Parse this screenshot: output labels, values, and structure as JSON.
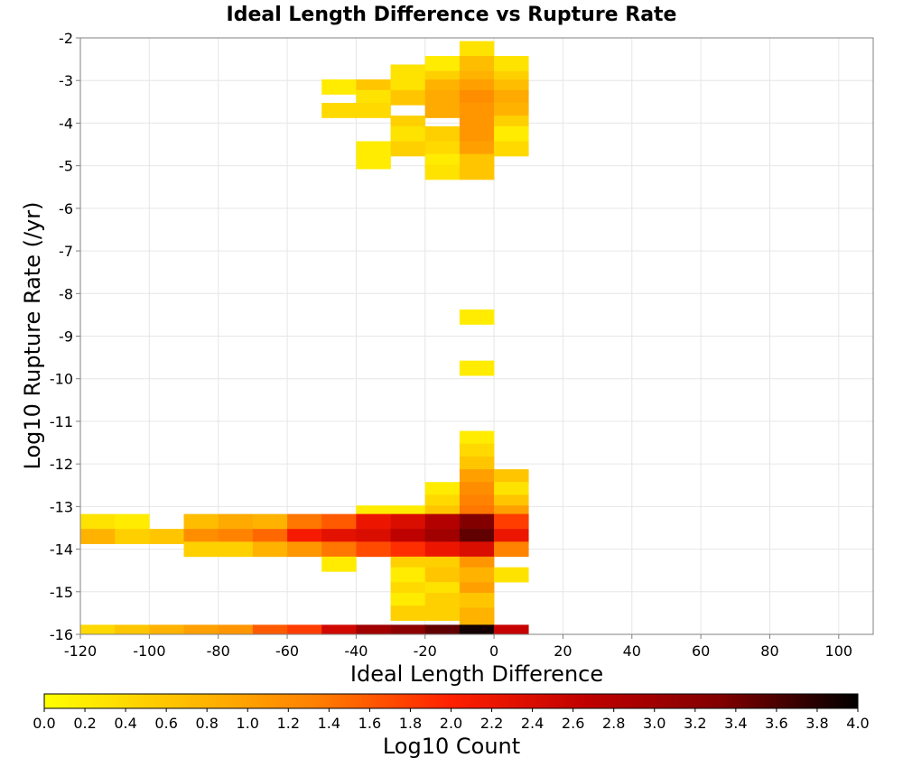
{
  "chart_data": {
    "type": "heatmap",
    "title": "Ideal Length Difference vs Rupture Rate",
    "xlabel": "Ideal Length Difference",
    "ylabel": "Log10 Rupture Rate (/yr)",
    "xlim": [
      -120,
      110
    ],
    "ylim": [
      -16,
      -2
    ],
    "xticks": [
      "-120",
      "-100",
      "-80",
      "-60",
      "-40",
      "-20",
      "0",
      "20",
      "40",
      "60",
      "80",
      "100"
    ],
    "yticks": [
      "-2",
      "-3",
      "-4",
      "-5",
      "-6",
      "-7",
      "-8",
      "-9",
      "-10",
      "-11",
      "-12",
      "-13",
      "-14",
      "-15",
      "-16"
    ],
    "grid": true,
    "bin_width_x": 10,
    "bin_height_y": 0.35,
    "colorbar": {
      "label": "Log10 Count",
      "min": 0,
      "max": 4,
      "ticks": [
        "0.0",
        "0.2",
        "0.4",
        "0.6",
        "0.8",
        "1.0",
        "1.2",
        "1.4",
        "1.6",
        "1.8",
        "2.0",
        "2.2",
        "2.4",
        "2.6",
        "2.8",
        "3.0",
        "3.2",
        "3.4",
        "3.6",
        "3.8",
        "4.0"
      ],
      "colors": [
        "#ffff00",
        "#ffc000",
        "#ff8000",
        "#ff2000",
        "#c00000",
        "#800000",
        "#000000"
      ]
    },
    "cells": [
      {
        "x": -5,
        "y": -2.25,
        "v": 0.3
      },
      {
        "x": -15,
        "y": -2.6,
        "v": 0.2
      },
      {
        "x": -5,
        "y": -2.6,
        "v": 0.7
      },
      {
        "x": 5,
        "y": -2.6,
        "v": 0.3
      },
      {
        "x": -25,
        "y": -2.8,
        "v": 0.3
      },
      {
        "x": -15,
        "y": -2.95,
        "v": 0.5
      },
      {
        "x": -5,
        "y": -2.95,
        "v": 0.8
      },
      {
        "x": 5,
        "y": -2.95,
        "v": 0.5
      },
      {
        "x": -45,
        "y": -3.15,
        "v": 0.2
      },
      {
        "x": -35,
        "y": -3.15,
        "v": 0.6
      },
      {
        "x": -25,
        "y": -3.15,
        "v": 0.3
      },
      {
        "x": -15,
        "y": -3.15,
        "v": 0.8
      },
      {
        "x": -5,
        "y": -3.15,
        "v": 1.0
      },
      {
        "x": 5,
        "y": -3.15,
        "v": 0.7
      },
      {
        "x": -35,
        "y": -3.4,
        "v": 0.3
      },
      {
        "x": -25,
        "y": -3.4,
        "v": 0.6
      },
      {
        "x": -15,
        "y": -3.4,
        "v": 0.9
      },
      {
        "x": -5,
        "y": -3.4,
        "v": 1.2
      },
      {
        "x": 5,
        "y": -3.4,
        "v": 0.9
      },
      {
        "x": -45,
        "y": -3.7,
        "v": 0.4
      },
      {
        "x": -35,
        "y": -3.7,
        "v": 0.4
      },
      {
        "x": -15,
        "y": -3.7,
        "v": 0.9
      },
      {
        "x": -5,
        "y": -3.7,
        "v": 1.1
      },
      {
        "x": 5,
        "y": -3.7,
        "v": 0.8
      },
      {
        "x": -25,
        "y": -4.0,
        "v": 0.5
      },
      {
        "x": -5,
        "y": -4.0,
        "v": 1.1
      },
      {
        "x": 5,
        "y": -4.0,
        "v": 0.5
      },
      {
        "x": -25,
        "y": -4.25,
        "v": 0.3
      },
      {
        "x": -15,
        "y": -4.25,
        "v": 0.5
      },
      {
        "x": -5,
        "y": -4.25,
        "v": 1.1
      },
      {
        "x": 5,
        "y": -4.25,
        "v": 0.2
      },
      {
        "x": -35,
        "y": -4.6,
        "v": 0.2
      },
      {
        "x": -25,
        "y": -4.6,
        "v": 0.5
      },
      {
        "x": -15,
        "y": -4.6,
        "v": 0.4
      },
      {
        "x": -5,
        "y": -4.6,
        "v": 1.0
      },
      {
        "x": 5,
        "y": -4.6,
        "v": 0.4
      },
      {
        "x": -35,
        "y": -4.9,
        "v": 0.2
      },
      {
        "x": -15,
        "y": -4.9,
        "v": 0.2
      },
      {
        "x": -5,
        "y": -4.9,
        "v": 0.6
      },
      {
        "x": -15,
        "y": -5.15,
        "v": 0.3
      },
      {
        "x": -5,
        "y": -5.15,
        "v": 0.6
      },
      {
        "x": -5,
        "y": -8.55,
        "v": 0.2
      },
      {
        "x": -5,
        "y": -9.75,
        "v": 0.2
      },
      {
        "x": -5,
        "y": -11.4,
        "v": 0.2
      },
      {
        "x": -5,
        "y": -11.7,
        "v": 0.4
      },
      {
        "x": -5,
        "y": -12.0,
        "v": 0.6
      },
      {
        "x": -5,
        "y": -12.3,
        "v": 1.0
      },
      {
        "x": 5,
        "y": -12.3,
        "v": 0.6
      },
      {
        "x": -15,
        "y": -12.6,
        "v": 0.2
      },
      {
        "x": -5,
        "y": -12.6,
        "v": 1.2
      },
      {
        "x": 5,
        "y": -12.6,
        "v": 0.3
      },
      {
        "x": -15,
        "y": -12.9,
        "v": 0.4
      },
      {
        "x": -5,
        "y": -12.9,
        "v": 1.3
      },
      {
        "x": 5,
        "y": -12.9,
        "v": 0.6
      },
      {
        "x": -35,
        "y": -13.15,
        "v": 0.2
      },
      {
        "x": -25,
        "y": -13.15,
        "v": 0.2
      },
      {
        "x": -15,
        "y": -13.15,
        "v": 0.6
      },
      {
        "x": -5,
        "y": -13.15,
        "v": 1.4
      },
      {
        "x": 5,
        "y": -13.15,
        "v": 1.0
      },
      {
        "x": -115,
        "y": -13.35,
        "v": 0.3
      },
      {
        "x": -105,
        "y": -13.35,
        "v": 0.2
      },
      {
        "x": -85,
        "y": -13.35,
        "v": 0.7
      },
      {
        "x": -75,
        "y": -13.35,
        "v": 0.9
      },
      {
        "x": -65,
        "y": -13.35,
        "v": 0.8
      },
      {
        "x": -55,
        "y": -13.35,
        "v": 1.4
      },
      {
        "x": -45,
        "y": -13.35,
        "v": 1.6
      },
      {
        "x": -35,
        "y": -13.35,
        "v": 2.2
      },
      {
        "x": -25,
        "y": -13.35,
        "v": 2.4
      },
      {
        "x": -15,
        "y": -13.35,
        "v": 2.8
      },
      {
        "x": -5,
        "y": -13.35,
        "v": 3.3
      },
      {
        "x": 5,
        "y": -13.35,
        "v": 1.8
      },
      {
        "x": -115,
        "y": -13.7,
        "v": 0.8
      },
      {
        "x": -105,
        "y": -13.7,
        "v": 0.5
      },
      {
        "x": -95,
        "y": -13.7,
        "v": 0.6
      },
      {
        "x": -85,
        "y": -13.7,
        "v": 1.2
      },
      {
        "x": -75,
        "y": -13.7,
        "v": 1.3
      },
      {
        "x": -65,
        "y": -13.7,
        "v": 1.5
      },
      {
        "x": -55,
        "y": -13.7,
        "v": 2.1
      },
      {
        "x": -45,
        "y": -13.7,
        "v": 2.3
      },
      {
        "x": -35,
        "y": -13.7,
        "v": 2.4
      },
      {
        "x": -25,
        "y": -13.7,
        "v": 2.7
      },
      {
        "x": -15,
        "y": -13.7,
        "v": 3.0
      },
      {
        "x": -5,
        "y": -13.7,
        "v": 3.5
      },
      {
        "x": 5,
        "y": -13.7,
        "v": 2.2
      },
      {
        "x": -85,
        "y": -14.0,
        "v": 0.5
      },
      {
        "x": -75,
        "y": -14.0,
        "v": 0.5
      },
      {
        "x": -65,
        "y": -14.0,
        "v": 0.8
      },
      {
        "x": -55,
        "y": -14.0,
        "v": 1.1
      },
      {
        "x": -45,
        "y": -14.0,
        "v": 1.4
      },
      {
        "x": -35,
        "y": -14.0,
        "v": 1.7
      },
      {
        "x": -25,
        "y": -14.0,
        "v": 1.9
      },
      {
        "x": -15,
        "y": -14.0,
        "v": 2.2
      },
      {
        "x": -5,
        "y": -14.0,
        "v": 2.4
      },
      {
        "x": 5,
        "y": -14.0,
        "v": 1.3
      },
      {
        "x": -45,
        "y": -14.35,
        "v": 0.2
      },
      {
        "x": -25,
        "y": -14.35,
        "v": 0.5
      },
      {
        "x": -15,
        "y": -14.35,
        "v": 0.5
      },
      {
        "x": -5,
        "y": -14.35,
        "v": 1.1
      },
      {
        "x": -25,
        "y": -14.6,
        "v": 0.2
      },
      {
        "x": -15,
        "y": -14.6,
        "v": 0.6
      },
      {
        "x": -5,
        "y": -14.6,
        "v": 0.8
      },
      {
        "x": 5,
        "y": -14.6,
        "v": 0.3
      },
      {
        "x": -25,
        "y": -14.95,
        "v": 0.4
      },
      {
        "x": -15,
        "y": -14.95,
        "v": 0.3
      },
      {
        "x": -5,
        "y": -14.95,
        "v": 1.0
      },
      {
        "x": -25,
        "y": -15.2,
        "v": 0.2
      },
      {
        "x": -15,
        "y": -15.2,
        "v": 0.5
      },
      {
        "x": -5,
        "y": -15.2,
        "v": 0.6
      },
      {
        "x": -25,
        "y": -15.5,
        "v": 0.5
      },
      {
        "x": -15,
        "y": -15.5,
        "v": 0.5
      },
      {
        "x": -5,
        "y": -15.55,
        "v": 0.8
      },
      {
        "x": -5,
        "y": -15.8,
        "v": 0.8
      },
      {
        "x": -115,
        "y": -15.95,
        "v": 0.4
      },
      {
        "x": -105,
        "y": -15.95,
        "v": 0.6
      },
      {
        "x": -95,
        "y": -15.95,
        "v": 0.8
      },
      {
        "x": -85,
        "y": -15.95,
        "v": 1.0
      },
      {
        "x": -75,
        "y": -15.95,
        "v": 1.1
      },
      {
        "x": -65,
        "y": -15.95,
        "v": 1.6
      },
      {
        "x": -55,
        "y": -15.95,
        "v": 1.8
      },
      {
        "x": -45,
        "y": -15.95,
        "v": 2.5
      },
      {
        "x": -35,
        "y": -15.95,
        "v": 3.0
      },
      {
        "x": -25,
        "y": -15.95,
        "v": 3.2
      },
      {
        "x": -15,
        "y": -15.95,
        "v": 3.5
      },
      {
        "x": -5,
        "y": -15.95,
        "v": 3.9
      },
      {
        "x": 5,
        "y": -15.95,
        "v": 2.6
      }
    ]
  }
}
